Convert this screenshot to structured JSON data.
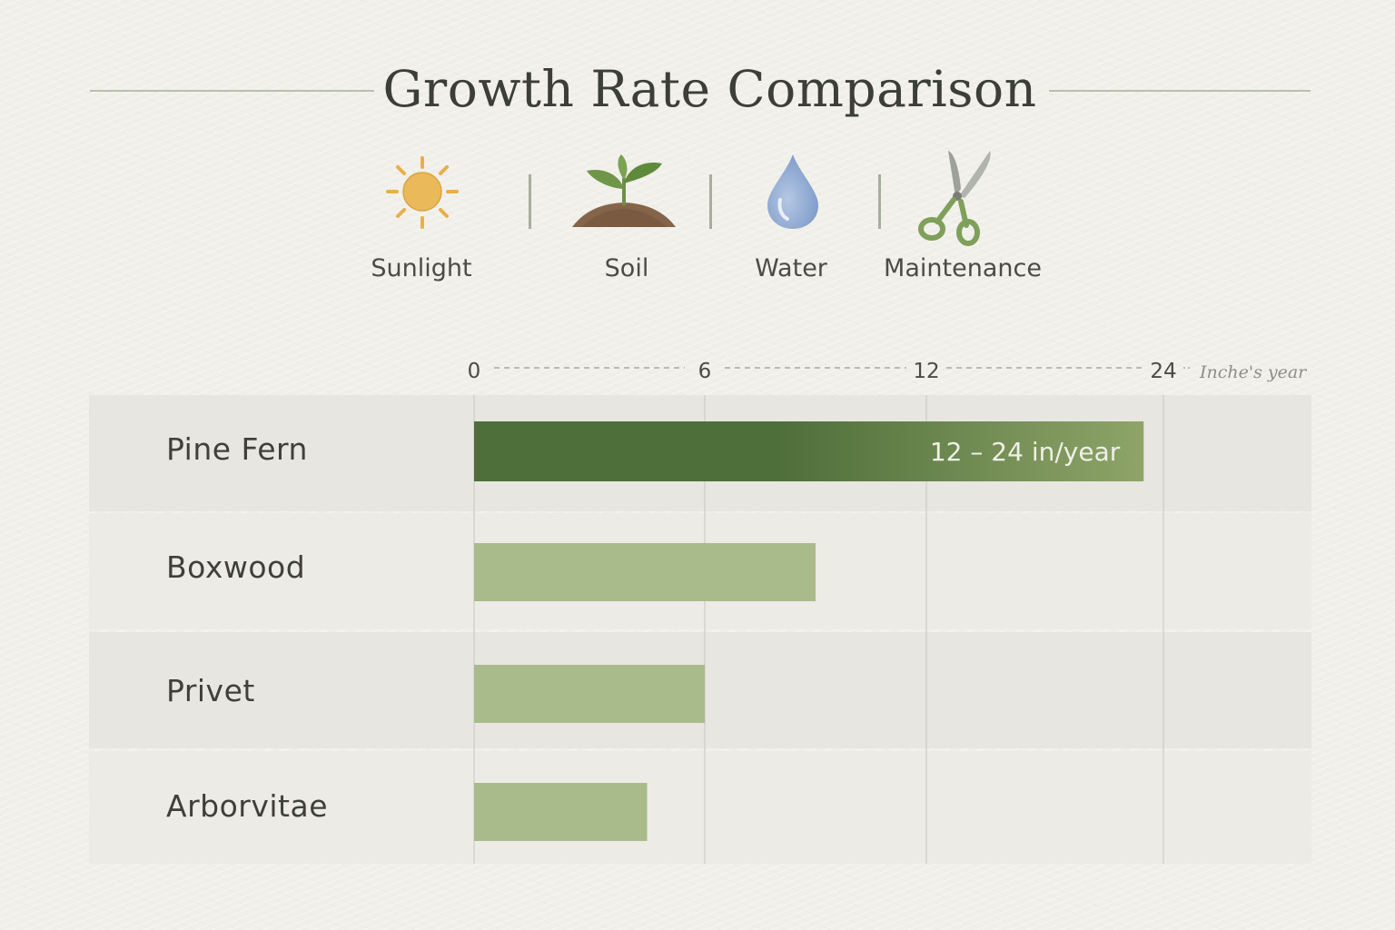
{
  "title": "Growth Rate Comparison",
  "icons": [
    {
      "name": "sun-icon",
      "label": "Sunlight"
    },
    {
      "name": "sprout-icon",
      "label": "Soil"
    },
    {
      "name": "water-drop-icon",
      "label": "Water"
    },
    {
      "name": "pruning-shears-icon",
      "label": "Maintenance"
    }
  ],
  "colors": {
    "bar_highlight_dark": "#4e6e3a",
    "bar_highlight_light": "#8ea468",
    "bar": "#a9bb8a",
    "row_band_a": "#e7e5df",
    "row_band_b": "#eceae5",
    "gridline": "#d3d1cb",
    "title_rule": "#b9bfae"
  },
  "chart_data": {
    "type": "bar",
    "orientation": "horizontal",
    "title": "Growth Rate Comparison",
    "x_axis": {
      "tick_labels": [
        "0",
        "6",
        "12",
        "24"
      ],
      "tick_values": [
        0,
        6,
        12,
        24
      ],
      "unit_label": "Inche's year",
      "position": "top",
      "dashed_connectors": true
    },
    "grid": true,
    "categories": [
      "Pine Fern",
      "Boxwood",
      "Privet",
      "Arborvitae"
    ],
    "values": [
      23,
      9,
      6,
      4.5
    ],
    "highlight": {
      "category": "Pine Fern",
      "range": [
        12,
        24
      ],
      "label": "12 – 24 in/year"
    }
  }
}
